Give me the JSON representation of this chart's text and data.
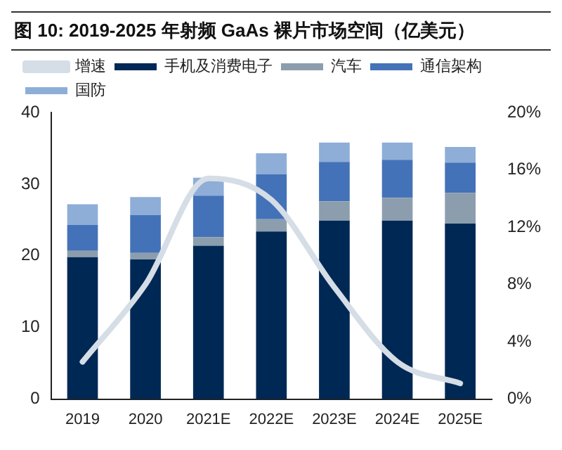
{
  "chart_data": {
    "type": "bar",
    "title": "图 10:  2019-2025 年射频 GaAs 裸片市场空间（亿美元）",
    "categories": [
      "2019",
      "2020",
      "2021E",
      "2022E",
      "2023E",
      "2024E",
      "2025E"
    ],
    "stacked": true,
    "legend": "top",
    "grid": false,
    "series": [
      {
        "name": "手机及消费电子",
        "color": "#002855",
        "values": [
          19.8,
          19.5,
          21.4,
          23.4,
          24.9,
          24.9,
          24.5
        ]
      },
      {
        "name": "汽车",
        "color": "#8c9eae",
        "values": [
          0.9,
          0.9,
          1.2,
          1.7,
          2.7,
          3.2,
          4.3
        ]
      },
      {
        "name": "通信架构",
        "color": "#4472b8",
        "values": [
          3.6,
          5.3,
          5.8,
          6.3,
          5.5,
          5.3,
          4.2
        ]
      },
      {
        "name": "国防",
        "color": "#8eaed8",
        "values": [
          2.9,
          2.5,
          2.5,
          2.9,
          2.7,
          2.4,
          2.2
        ]
      },
      {
        "name": "增速",
        "type": "line",
        "axis": "y2",
        "color": "#d5dde6",
        "values": [
          2.6,
          8.0,
          15.4,
          13.9,
          7.8,
          2.6,
          1.1
        ]
      }
    ],
    "ylim": [
      0,
      40
    ],
    "yticks": [
      0,
      10,
      20,
      30,
      40
    ],
    "y2lim": [
      0,
      20
    ],
    "y2ticks": [
      {
        "value": 0,
        "label": "0%"
      },
      {
        "value": 4,
        "label": "4%"
      },
      {
        "value": 8,
        "label": "8%"
      },
      {
        "value": 12,
        "label": "12%"
      },
      {
        "value": 16,
        "label": "16%"
      },
      {
        "value": 20,
        "label": "20%"
      }
    ]
  }
}
